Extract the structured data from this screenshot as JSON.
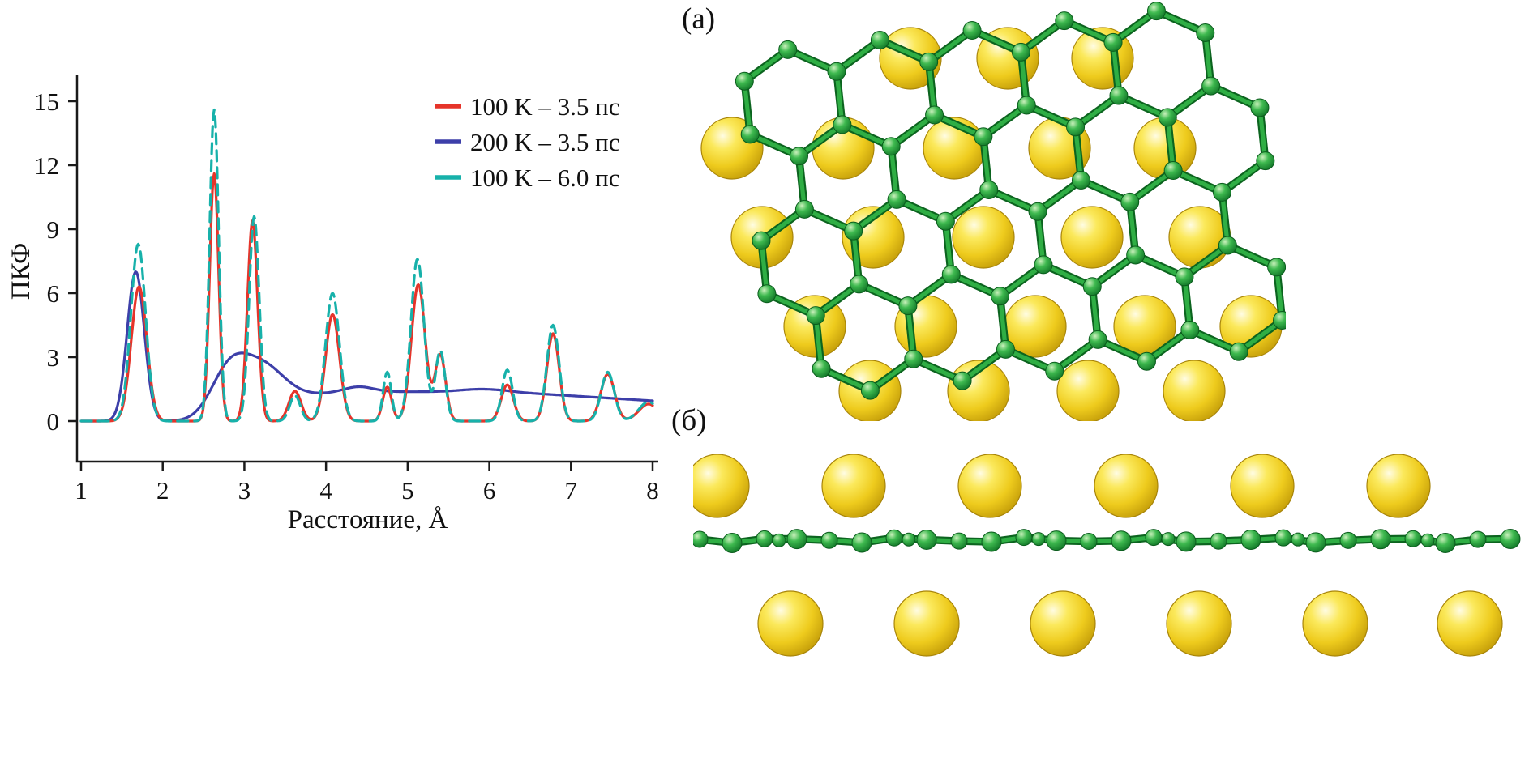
{
  "figure": {
    "panel_a_label": "(а)",
    "panel_b_label": "(б)"
  },
  "chart_data": {
    "type": "line",
    "title": "",
    "xlabel": "Расстояние, Å",
    "ylabel": "ПКФ",
    "xlim": [
      1,
      8
    ],
    "ylim": [
      0,
      15.5
    ],
    "xticks": [
      1,
      2,
      3,
      4,
      5,
      6,
      7,
      8
    ],
    "yticks": [
      0,
      3,
      6,
      9,
      12,
      15
    ],
    "grid": false,
    "legend_position": "top-right",
    "series": [
      {
        "name": "100 K – 3.5 пс",
        "color": "#e6342a",
        "style": "solid",
        "peaks": [
          [
            1.71,
            6.3,
            0.095
          ],
          [
            2.63,
            11.6,
            0.055
          ],
          [
            3.1,
            9.4,
            0.062
          ],
          [
            3.62,
            1.4,
            0.075
          ],
          [
            4.08,
            5.0,
            0.085
          ],
          [
            4.75,
            1.6,
            0.055
          ],
          [
            5.13,
            6.4,
            0.085
          ],
          [
            5.4,
            3.1,
            0.065
          ],
          [
            6.22,
            1.7,
            0.075
          ],
          [
            6.78,
            4.1,
            0.075
          ],
          [
            7.45,
            2.2,
            0.085
          ],
          [
            7.95,
            0.8,
            0.12
          ]
        ]
      },
      {
        "name": "200 K – 3.5 пс",
        "color": "#3d3fa9",
        "style": "solid",
        "peaks": [
          [
            1.67,
            7.0,
            0.105
          ],
          [
            2.8,
            2.0,
            0.22
          ],
          [
            3.2,
            2.2,
            0.28
          ],
          [
            4.4,
            0.25,
            0.18
          ],
          [
            5.9,
            0.12,
            0.25
          ]
        ],
        "plateau": {
          "onset": 3.45,
          "rise": 0.22,
          "level": 1.38,
          "fade_from": 6.2,
          "fade_to": 8.0,
          "end_level": 0.95
        }
      },
      {
        "name": "100 K – 6.0 пс",
        "color": "#17b1aa",
        "style": "dashed",
        "peaks": [
          [
            1.7,
            8.3,
            0.09
          ],
          [
            2.63,
            14.6,
            0.055
          ],
          [
            3.12,
            9.6,
            0.062
          ],
          [
            3.62,
            1.2,
            0.065
          ],
          [
            4.08,
            6.0,
            0.085
          ],
          [
            4.75,
            2.3,
            0.05
          ],
          [
            5.12,
            7.6,
            0.08
          ],
          [
            5.4,
            3.3,
            0.06
          ],
          [
            6.22,
            2.4,
            0.065
          ],
          [
            6.78,
            4.5,
            0.075
          ],
          [
            7.45,
            2.3,
            0.08
          ],
          [
            7.95,
            0.9,
            0.12
          ]
        ]
      }
    ]
  },
  "structure": {
    "carbon_color": "#27a33c",
    "carbon_dark": "#0c641f",
    "carbon_light": "#2fae44",
    "gold_color": "#eecb1d",
    "gold_dark": "#a8850a"
  }
}
